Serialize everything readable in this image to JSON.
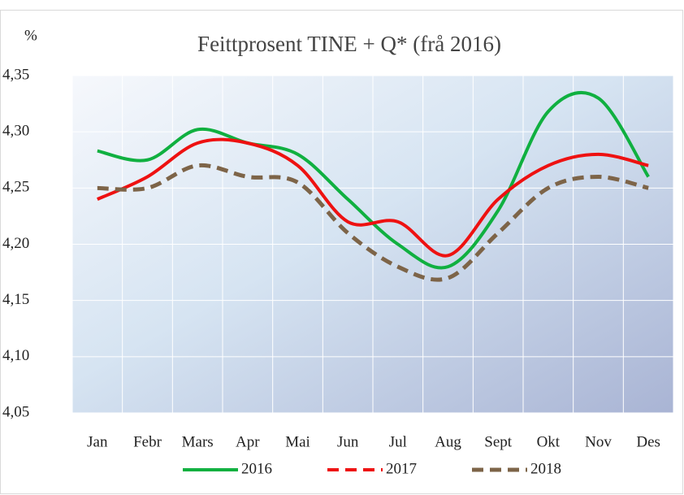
{
  "chart_data": {
    "type": "line",
    "title": "Feittprosent TINE + Q* (frå 2016)",
    "y_label": "%",
    "categories": [
      "Jan",
      "Febr",
      "Mars",
      "Apr",
      "Mai",
      "Jun",
      "Jul",
      "Aug",
      "Sept",
      "Okt",
      "Nov",
      "Des"
    ],
    "series": [
      {
        "name": "2016",
        "color": "#10b040",
        "values": [
          4.283,
          4.275,
          4.302,
          4.29,
          4.28,
          4.24,
          4.2,
          4.18,
          4.23,
          4.318,
          4.33,
          4.26
        ]
      },
      {
        "name": "2017",
        "color": "#ee1111",
        "values": [
          4.24,
          4.26,
          4.29,
          4.29,
          4.27,
          4.22,
          4.22,
          4.19,
          4.24,
          4.27,
          4.28,
          4.27
        ]
      },
      {
        "name": "2018",
        "color": "#7d6448",
        "values": [
          4.25,
          4.25,
          4.27,
          4.26,
          4.255,
          4.21,
          4.18,
          4.17,
          4.21,
          4.25,
          4.26,
          4.25
        ]
      }
    ],
    "ylim": [
      4.05,
      4.35
    ],
    "yticks": [
      {
        "value": 4.05,
        "label": "4,05"
      },
      {
        "value": 4.1,
        "label": "4,10"
      },
      {
        "value": 4.15,
        "label": "4,15"
      },
      {
        "value": 4.2,
        "label": "4,20"
      },
      {
        "value": 4.25,
        "label": "4,25"
      },
      {
        "value": 4.3,
        "label": "4,30"
      },
      {
        "value": 4.35,
        "label": "4,35"
      }
    ],
    "grid": true
  }
}
